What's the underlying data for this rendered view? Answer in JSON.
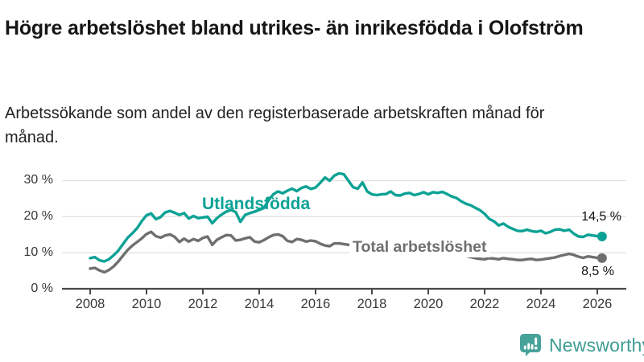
{
  "header": {
    "title": "Högre arbetslöshet bland utrikes- än inrikesfödda i Olofström",
    "subtitle": "Arbetssökande som andel av den registerbaserade arbetskraften månad för månad."
  },
  "colors": {
    "accent_teal": "#0ca295",
    "series_gray": "#6f6f6f",
    "logo_teal": "#47a29a",
    "logo_text_teal": "#3e9d94",
    "grid": "#e2e2e2",
    "axis": "#4a4a4a"
  },
  "chart_data": {
    "type": "line",
    "title": "Högre arbetslöshet bland utrikes- än inrikesfödda i Olofström",
    "subtitle": "Arbetssökande som andel av den registerbaserade arbetskraften månad för månad.",
    "unit": "%",
    "x_start": 2008,
    "x_step_months": 2,
    "xlim": [
      2007,
      2027
    ],
    "ylim": [
      0,
      33
    ],
    "grid": true,
    "x_ticks": [
      2008,
      2010,
      2012,
      2014,
      2016,
      2018,
      2020,
      2022,
      2024,
      2026
    ],
    "y_ticks": [
      0,
      10,
      20,
      30
    ],
    "y_tick_labels": [
      "0 %",
      "10 %",
      "20 %",
      "30 %"
    ],
    "series": [
      {
        "name": "Utlandsfödda",
        "color": "#0ca295",
        "end_value": 14.5,
        "end_label": "14,5 %",
        "values": [
          8.5,
          8.8,
          7.9,
          7.6,
          8.2,
          9.3,
          10.6,
          12.4,
          14.2,
          15.4,
          16.8,
          18.8,
          20.4,
          20.9,
          19.3,
          19.9,
          21.2,
          21.6,
          21.1,
          20.5,
          21.0,
          19.5,
          20.2,
          19.6,
          19.8,
          20.0,
          18.2,
          19.6,
          20.6,
          21.4,
          21.9,
          21.3,
          18.6,
          20.5,
          21.0,
          21.4,
          21.9,
          22.4,
          24.6,
          26.2,
          27.0,
          26.5,
          27.2,
          27.8,
          27.1,
          28.0,
          28.4,
          27.7,
          28.1,
          29.4,
          30.9,
          30.0,
          31.4,
          32.0,
          31.8,
          30.0,
          28.2,
          27.8,
          29.5,
          27.0,
          26.2,
          26.0,
          26.2,
          26.3,
          27.0,
          26.0,
          25.9,
          26.4,
          26.6,
          26.0,
          26.3,
          26.8,
          26.2,
          26.8,
          26.6,
          26.9,
          26.3,
          25.6,
          25.2,
          24.3,
          23.6,
          23.2,
          22.5,
          21.8,
          20.8,
          19.4,
          18.7,
          17.6,
          18.1,
          17.2,
          16.6,
          16.1,
          16.0,
          16.4,
          16.0,
          15.8,
          16.1,
          15.4,
          15.8,
          16.4,
          16.5,
          16.1,
          16.4,
          15.3,
          14.5,
          14.4,
          15.0,
          14.8,
          14.6,
          14.5
        ]
      },
      {
        "name": "Total arbetslöshet",
        "color": "#6f6f6f",
        "end_value": 8.5,
        "end_label": "8,5 %",
        "values": [
          5.6,
          5.8,
          5.1,
          4.6,
          5.2,
          6.2,
          7.6,
          9.2,
          10.8,
          12.0,
          13.0,
          14.0,
          15.2,
          15.8,
          14.6,
          14.2,
          14.8,
          15.1,
          14.4,
          13.0,
          13.9,
          13.1,
          13.8,
          13.3,
          14.1,
          14.5,
          12.2,
          13.6,
          14.3,
          14.9,
          14.8,
          13.4,
          13.6,
          14.0,
          14.3,
          13.1,
          12.9,
          13.5,
          14.3,
          14.9,
          15.1,
          14.6,
          13.3,
          13.0,
          13.8,
          13.6,
          13.1,
          13.4,
          13.2,
          12.5,
          12.0,
          11.8,
          12.6,
          12.6,
          12.4,
          12.2,
          11.9,
          11.6,
          11.4,
          11.2,
          11.0,
          10.8,
          10.6,
          10.5,
          10.4,
          10.2,
          10.0,
          9.9,
          9.8,
          9.7,
          9.7,
          9.8,
          9.9,
          10.4,
          10.8,
          10.6,
          10.3,
          10.0,
          9.7,
          9.4,
          9.1,
          8.8,
          8.5,
          8.3,
          8.2,
          8.5,
          8.4,
          8.2,
          8.5,
          8.3,
          8.2,
          8.0,
          8.0,
          8.2,
          8.3,
          8.0,
          8.1,
          8.3,
          8.5,
          8.7,
          9.1,
          9.4,
          9.7,
          9.4,
          8.9,
          8.6,
          9.0,
          8.8,
          8.6,
          8.5
        ]
      }
    ]
  },
  "footer": {
    "brand": "Newsworthy"
  }
}
